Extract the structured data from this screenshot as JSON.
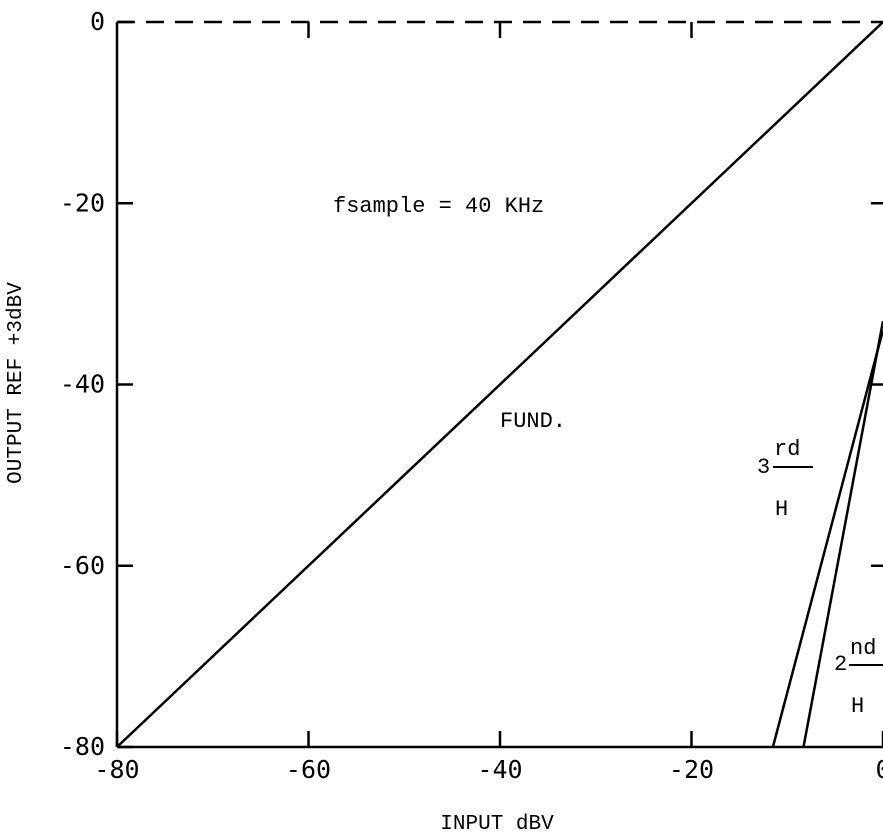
{
  "chart_data": {
    "type": "line",
    "title": "",
    "xlabel": "INPUT dBV",
    "ylabel": "OUTPUT REF +3dBV",
    "xlim": [
      -80,
      0
    ],
    "ylim": [
      -80,
      0
    ],
    "x_ticks": [
      -80,
      -60,
      -40,
      -20,
      0
    ],
    "y_ticks": [
      0,
      -20,
      -40,
      -60,
      -80
    ],
    "x_tick_labels": [
      "-80",
      "-60",
      "-40",
      "-20",
      "0"
    ],
    "y_tick_labels": [
      "0",
      "-20",
      "-40",
      "-60",
      "-80"
    ],
    "grid": false,
    "top_axis_style": "dashed",
    "series": [
      {
        "name": "FUND.",
        "points": [
          [
            -80,
            -80
          ],
          [
            0,
            0
          ]
        ]
      },
      {
        "name": "3rd H",
        "points": [
          [
            -11.5,
            -80
          ],
          [
            0,
            -34
          ]
        ]
      },
      {
        "name": "2nd H",
        "points": [
          [
            -8.3,
            -80
          ],
          [
            0,
            -33
          ]
        ]
      }
    ],
    "annotations": {
      "fsample": "fsample = 40 KHz",
      "fund": "FUND.",
      "third_num": "3",
      "third_sup": "rd",
      "third_h": "H",
      "second_num": "2",
      "second_sup": "nd",
      "second_h": "H"
    }
  }
}
